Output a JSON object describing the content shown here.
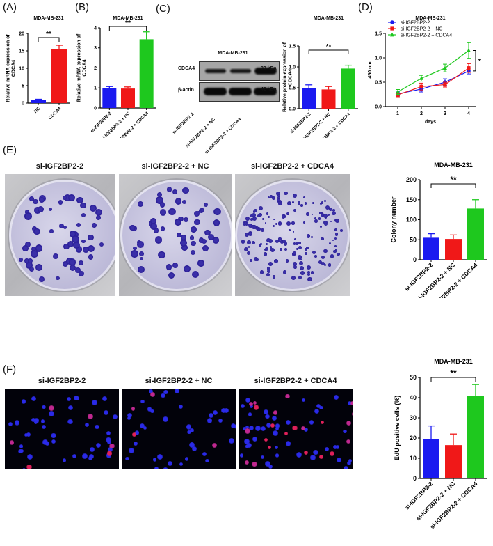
{
  "figure": {
    "panel_labels": [
      "(A)",
      "(B)",
      "(C)",
      "(D)",
      "(E)",
      "(F)"
    ],
    "cell_line": "MDA-MB-231",
    "colors": {
      "blue": "#1a1af0",
      "red": "#f01818",
      "green": "#1ec81e"
    },
    "western_blot": {
      "title": "MDA-MB-231",
      "rows": [
        {
          "label": "CDCA4",
          "size": "33 kDa"
        },
        {
          "label": "β-actin",
          "size": "42 kDa"
        }
      ],
      "lanes": [
        "si-IGF2BP2-2",
        "si-IGF2BP2-2 + NC",
        "si-IGF2BP2-2 + CDCA4"
      ]
    },
    "colony_photos": {
      "titles": [
        "si-IGF2BP2-2",
        "si-IGF2BP2-2 + NC",
        "si-IGF2BP2-2 + CDCA4"
      ]
    },
    "edu_photos": {
      "titles": [
        "si-IGF2BP2-2",
        "si-IGF2BP2-2 + NC",
        "si-IGF2BP2-2 + CDCA4"
      ]
    }
  },
  "chart_data": [
    {
      "id": "A",
      "type": "bar",
      "title": "MDA-MB-231",
      "categories": [
        "NC",
        "CDCA4"
      ],
      "values": [
        1.0,
        15.5
      ],
      "errors": [
        0.1,
        1.1
      ],
      "colors": [
        "#1a1af0",
        "#f01818"
      ],
      "ylabel": "Relative mRNA expression of CDCA4",
      "ylim": [
        0,
        20
      ],
      "yticks": [
        0,
        5,
        10,
        15,
        20
      ],
      "significance": {
        "from": 0,
        "to": 1,
        "label": "**"
      }
    },
    {
      "id": "B",
      "type": "bar",
      "title": "MDA-MB-231",
      "categories": [
        "si-IGF2BP2-2",
        "si-IGF2BP2-2 + NC",
        "si-IGF2BP2-2 + CDCA4"
      ],
      "values": [
        1.0,
        0.97,
        3.43
      ],
      "errors": [
        0.07,
        0.08,
        0.37
      ],
      "colors": [
        "#1a1af0",
        "#f01818",
        "#1ec81e"
      ],
      "ylabel": "Relative mRNA expression of CDCA4",
      "ylim": [
        0,
        4
      ],
      "yticks": [
        0,
        1,
        2,
        3,
        4
      ],
      "significance": {
        "from": 0,
        "to": 2,
        "label": "**"
      }
    },
    {
      "id": "C",
      "type": "bar",
      "title": "MDA-MB-231",
      "categories": [
        "si-IGF2BP2-2",
        "si-IGF2BP2-2 + NC",
        "si-IGF2BP2-2 + CDCA4"
      ],
      "values": [
        0.49,
        0.46,
        0.96
      ],
      "errors": [
        0.08,
        0.07,
        0.08
      ],
      "colors": [
        "#1a1af0",
        "#f01818",
        "#1ec81e"
      ],
      "ylabel": "Relative protein expression of CDCA4",
      "ylim": [
        0,
        1.5
      ],
      "yticks": [
        "0.0",
        "0.5",
        "1.0",
        "1.5"
      ],
      "significance": {
        "from": 0,
        "to": 2,
        "label": "**"
      }
    },
    {
      "id": "D",
      "type": "line",
      "title": "MDA-MB-231",
      "x": [
        1,
        2,
        3,
        4
      ],
      "xlabel": "days",
      "ylabel": "450 nm",
      "ylim": [
        0,
        1.5
      ],
      "yticks": [
        "0.0",
        "0.5",
        "1.0",
        "1.5"
      ],
      "series": [
        {
          "name": "si-IGF2BP2-2",
          "values": [
            0.26,
            0.36,
            0.5,
            0.73
          ],
          "errors": [
            0.04,
            0.06,
            0.07,
            0.06
          ],
          "color": "#1a1af0",
          "marker": "circle"
        },
        {
          "name": "si-IGF2BP2-2 + NC",
          "values": [
            0.24,
            0.41,
            0.45,
            0.79
          ],
          "errors": [
            0.04,
            0.07,
            0.05,
            0.09
          ],
          "color": "#f01818",
          "marker": "square"
        },
        {
          "name": "si-IGF2BP2-2 + CDCA4",
          "values": [
            0.3,
            0.58,
            0.79,
            1.15
          ],
          "errors": [
            0.05,
            0.06,
            0.08,
            0.16
          ],
          "color": "#1ec81e",
          "marker": "triangle"
        }
      ],
      "significance": {
        "label": "*"
      },
      "legend_position": "upper-left"
    },
    {
      "id": "E",
      "type": "bar",
      "title": "MDA-MB-231",
      "categories": [
        "si-IGF2BP2-2",
        "si-IGF2BP2-2 + NC",
        "si-IGF2BP2-2 + CDCA4"
      ],
      "values": [
        55,
        52,
        128
      ],
      "errors": [
        10,
        10,
        22
      ],
      "colors": [
        "#1a1af0",
        "#f01818",
        "#1ec81e"
      ],
      "ylabel": "Colony number",
      "ylim": [
        0,
        200
      ],
      "yticks": [
        0,
        50,
        100,
        150,
        200
      ],
      "significance": {
        "from": 0,
        "to": 2,
        "label": "**"
      }
    },
    {
      "id": "F",
      "type": "bar",
      "title": "MDA-MB-231",
      "categories": [
        "si-IGF2BP2-2",
        "si-IGF2BP2-2 + NC",
        "si-IGF2BP2-2 + CDCA4"
      ],
      "values": [
        19.5,
        16.5,
        41
      ],
      "errors": [
        6.5,
        5.5,
        5.5
      ],
      "colors": [
        "#1a1af0",
        "#f01818",
        "#1ec81e"
      ],
      "ylabel": "EdU positive cells (%)",
      "ylim": [
        0,
        50
      ],
      "yticks": [
        0,
        10,
        20,
        30,
        40,
        50
      ],
      "significance": {
        "from": 0,
        "to": 2,
        "label": "**"
      }
    }
  ]
}
